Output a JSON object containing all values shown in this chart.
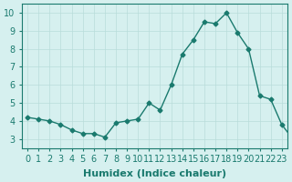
{
  "x": [
    0,
    1,
    2,
    3,
    4,
    5,
    6,
    7,
    8,
    9,
    10,
    11,
    12,
    13,
    14,
    15,
    16,
    17,
    18,
    19,
    20,
    21,
    22,
    23,
    24
  ],
  "y": [
    4.2,
    4.1,
    4.0,
    3.8,
    3.5,
    3.3,
    3.3,
    3.1,
    3.9,
    4.0,
    4.1,
    5.0,
    4.6,
    6.0,
    7.7,
    8.5,
    9.5,
    9.4,
    10.0,
    8.9,
    8.0,
    5.4,
    5.2,
    3.8,
    3.0
  ],
  "xlabel": "Humidex (Indice chaleur)",
  "xlim": [
    -0.5,
    23.5
  ],
  "ylim": [
    2.5,
    10.5
  ],
  "xticks": [
    0,
    1,
    2,
    3,
    4,
    5,
    6,
    7,
    8,
    9,
    10,
    11,
    12,
    13,
    14,
    15,
    16,
    17,
    18,
    19,
    20,
    21,
    22,
    23
  ],
  "yticks": [
    3,
    4,
    5,
    6,
    7,
    8,
    9,
    10
  ],
  "line_color": "#1a7a6e",
  "marker": "D",
  "marker_size": 2.5,
  "bg_color": "#d6f0ef",
  "grid_color": "#b8dcda",
  "xlabel_fontsize": 8,
  "tick_fontsize": 7
}
